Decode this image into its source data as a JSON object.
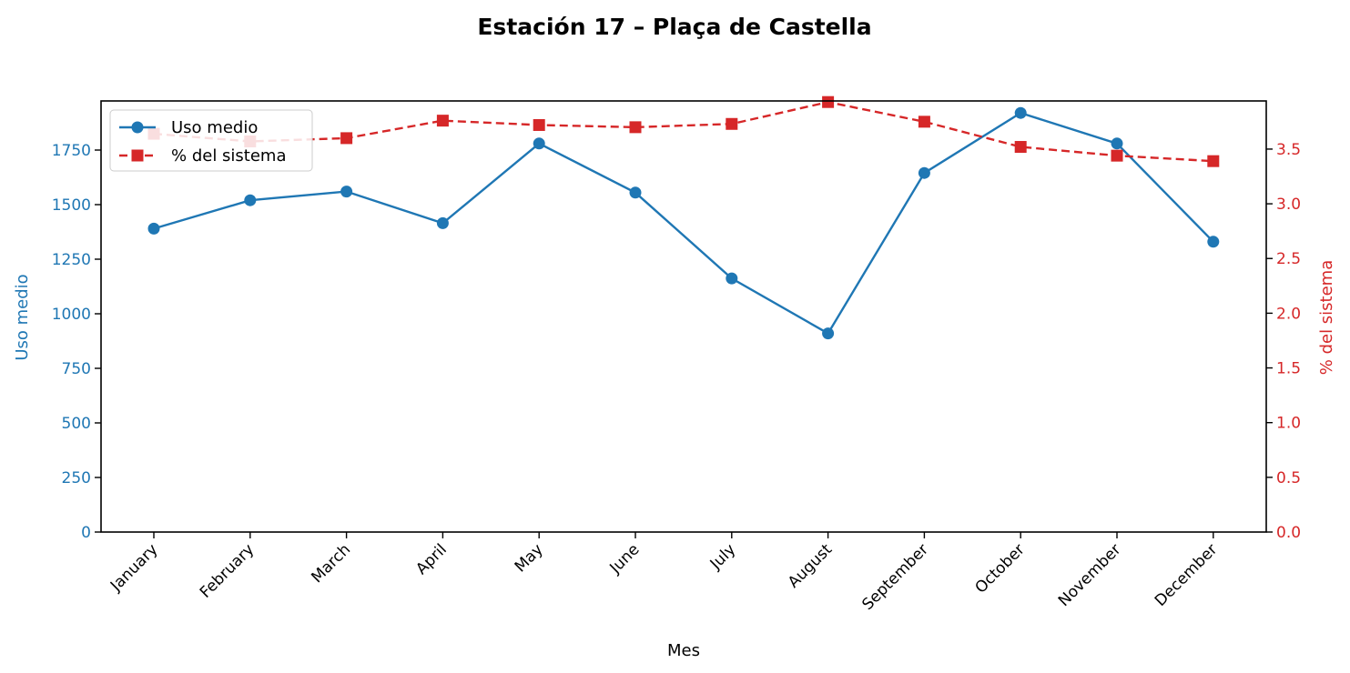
{
  "chart_data": {
    "type": "line",
    "title": "Estación 17 – Plaça de Castella",
    "xlabel": "Mes",
    "categories": [
      "January",
      "February",
      "March",
      "April",
      "May",
      "June",
      "July",
      "August",
      "September",
      "October",
      "November",
      "December"
    ],
    "y_left": {
      "label": "Uso medio",
      "ylim": [
        0,
        1975
      ],
      "ticks": [
        0,
        250,
        500,
        750,
        1000,
        1250,
        1500,
        1750
      ],
      "color": "#1f77b4"
    },
    "y_right": {
      "label": "% del sistema",
      "ylim": [
        0,
        3.94
      ],
      "ticks": [
        "0.0",
        "0.5",
        "1.0",
        "1.5",
        "2.0",
        "2.5",
        "3.0",
        "3.5"
      ],
      "color": "#d62728"
    },
    "series": [
      {
        "name": "Uso medio",
        "axis": "left",
        "color": "#1f77b4",
        "line_style": "solid",
        "marker": "circle",
        "values": [
          1390,
          1520,
          1560,
          1415,
          1780,
          1555,
          1162,
          910,
          1645,
          1920,
          1780,
          1330
        ]
      },
      {
        "name": "% del sistema",
        "axis": "right",
        "color": "#d62728",
        "line_style": "dashed",
        "marker": "square",
        "values": [
          3.64,
          3.57,
          3.6,
          3.76,
          3.72,
          3.7,
          3.73,
          3.93,
          3.75,
          3.52,
          3.44,
          3.39
        ]
      }
    ],
    "legend": {
      "placement": "top-left"
    },
    "grid": false
  }
}
